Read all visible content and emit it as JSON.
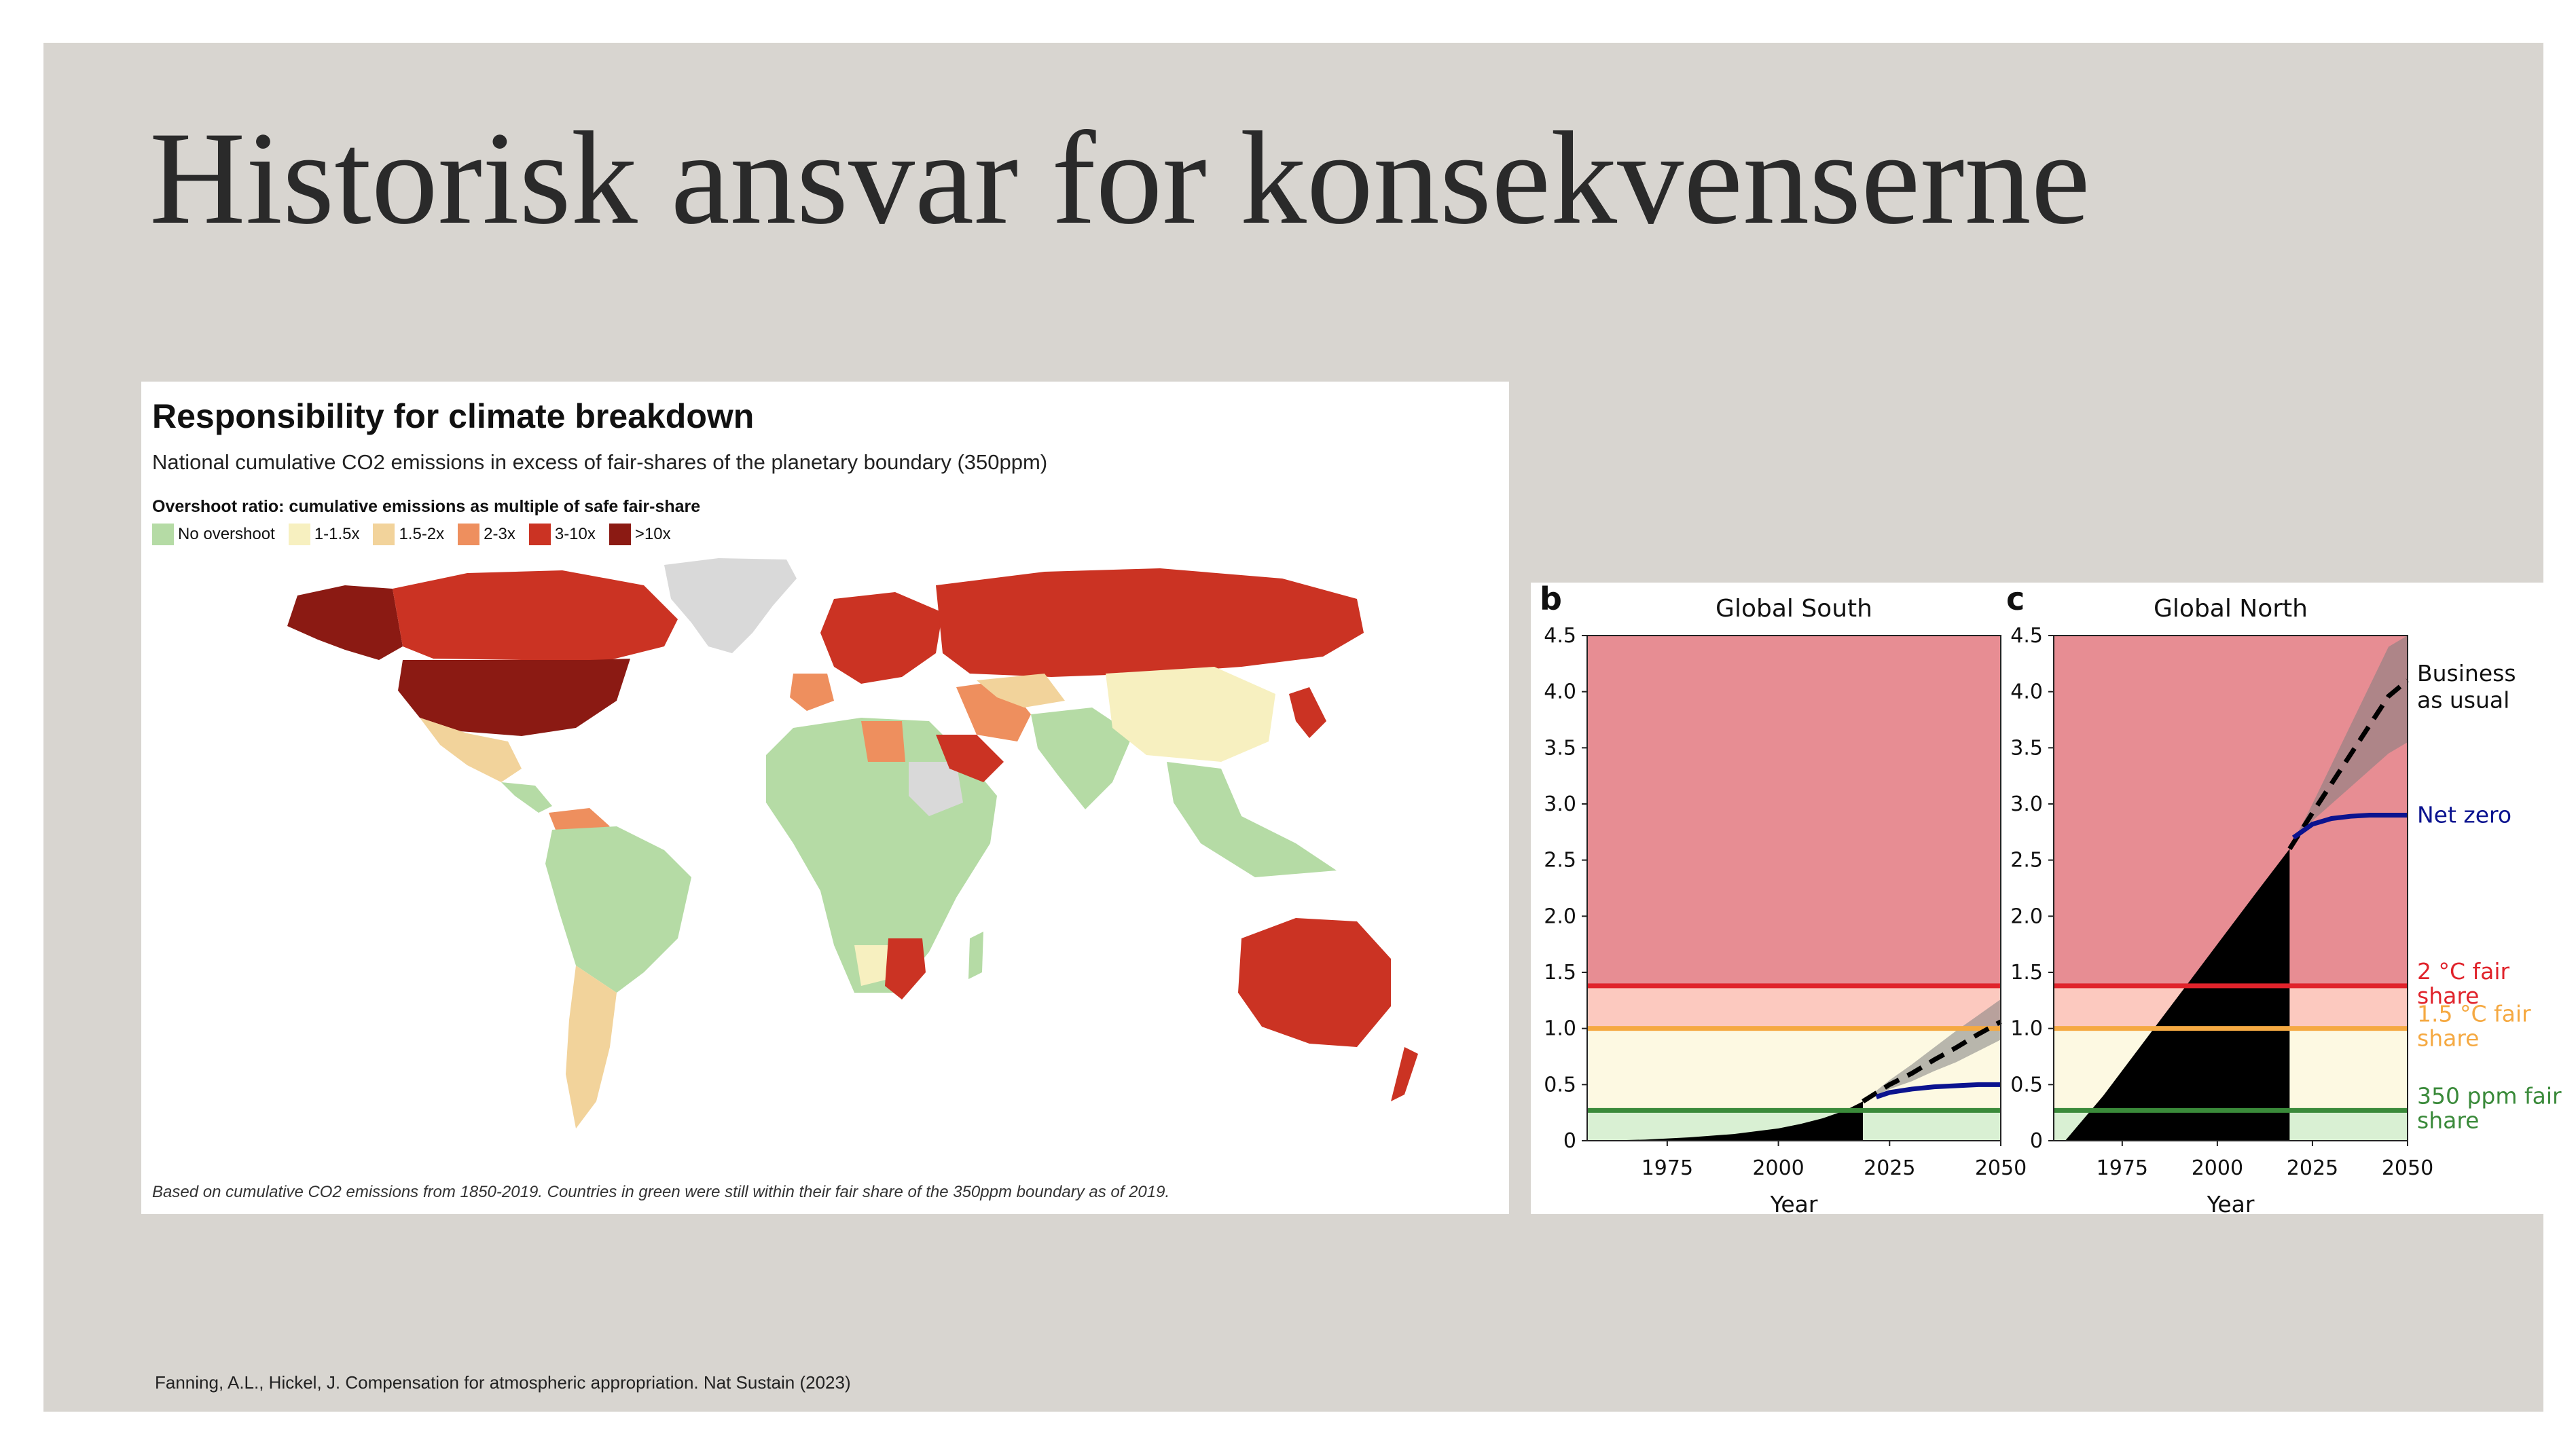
{
  "slide": {
    "title": "Historisk ansvar for konsekvenserne",
    "citation": "Fanning, A.L., Hickel, J. Compensation for atmospheric appropriation. Nat Sustain (2023)"
  },
  "map": {
    "title": "Responsibility for climate breakdown",
    "subtitle": "National cumulative CO2 emissions in excess of fair-shares of the planetary boundary (350ppm)",
    "legend_title": "Overshoot ratio: cumulative emissions as multiple of safe fair-share",
    "legend": [
      {
        "label": "No overshoot",
        "color": "#b5dba5"
      },
      {
        "label": "1-1.5x",
        "color": "#f7f0c0"
      },
      {
        "label": "1.5-2x",
        "color": "#f2d39b"
      },
      {
        "label": "2-3x",
        "color": "#ee8f5e"
      },
      {
        "label": "3-10x",
        "color": "#cb3323"
      },
      {
        "label": ">10x",
        "color": "#8b1a13"
      }
    ],
    "no_data_color": "#d9d9d9",
    "footnote": "Based on cumulative CO2 emissions from 1850-2019. Countries in green were still within their fair share of the 350ppm boundary as of 2019."
  },
  "chart_data": [
    {
      "type": "area",
      "panel_letter": "b",
      "title": "Global South",
      "xlabel": "Year",
      "ylabel": "",
      "xlim": [
        1957,
        2050
      ],
      "ylim": [
        0,
        4.5
      ],
      "xticks": [
        1975,
        2000,
        2025,
        2050
      ],
      "yticks": [
        0,
        0.5,
        1.0,
        1.5,
        2.0,
        2.5,
        3.0,
        3.5,
        4.0,
        4.5
      ],
      "ytick_labels": [
        "0",
        "0.5",
        "1.0",
        "1.5",
        "2.0",
        "2.5",
        "3.0",
        "3.5",
        "4.0",
        "4.5"
      ],
      "thresholds": [
        {
          "value": 1.38,
          "color": "#e0232b"
        },
        {
          "value": 1.0,
          "color": "#f5a942"
        },
        {
          "value": 0.27,
          "color": "#3a8a3a"
        }
      ],
      "series": [
        {
          "role": "historical",
          "color": "#000000",
          "x": [
            1960,
            1970,
            1980,
            1990,
            2000,
            2005,
            2010,
            2015,
            2019
          ],
          "y": [
            0,
            0.01,
            0.03,
            0.06,
            0.11,
            0.15,
            0.2,
            0.27,
            0.35
          ]
        },
        {
          "role": "business-as-usual",
          "color": "#000000",
          "x": [
            2019,
            2025,
            2030,
            2035,
            2040,
            2045,
            2050
          ],
          "y": [
            0.35,
            0.5,
            0.6,
            0.72,
            0.83,
            0.95,
            1.06
          ],
          "band_low": [
            0.35,
            0.46,
            0.53,
            0.62,
            0.7,
            0.8,
            0.9
          ],
          "band_high": [
            0.35,
            0.54,
            0.68,
            0.83,
            0.98,
            1.12,
            1.26
          ]
        },
        {
          "role": "net-zero",
          "color": "#0b138f",
          "x": [
            2022,
            2025,
            2030,
            2035,
            2040,
            2045,
            2050
          ],
          "y": [
            0.39,
            0.43,
            0.46,
            0.48,
            0.49,
            0.5,
            0.5
          ]
        }
      ]
    },
    {
      "type": "area",
      "panel_letter": "c",
      "title": "Global North",
      "xlabel": "Year",
      "ylabel": "",
      "xlim": [
        1957,
        2050
      ],
      "ylim": [
        0,
        4.5
      ],
      "xticks": [
        1975,
        2000,
        2025,
        2050
      ],
      "yticks": [
        0,
        0.5,
        1.0,
        1.5,
        2.0,
        2.5,
        3.0,
        3.5,
        4.0,
        4.5
      ],
      "ytick_labels": [
        "0",
        "0.5",
        "1.0",
        "1.5",
        "2.0",
        "2.5",
        "3.0",
        "3.5",
        "4.0",
        "4.5"
      ],
      "thresholds": [
        {
          "value": 1.38,
          "color": "#e0232b",
          "label": "2 °C fair share"
        },
        {
          "value": 1.0,
          "color": "#f5a942",
          "label": "1.5 °C fair share"
        },
        {
          "value": 0.27,
          "color": "#3a8a3a",
          "label": "350 ppm fair share"
        }
      ],
      "series": [
        {
          "role": "historical",
          "color": "#000000",
          "x": [
            1960,
            1970,
            1980,
            1990,
            2000,
            2010,
            2019
          ],
          "y": [
            0,
            0.4,
            0.85,
            1.3,
            1.75,
            2.2,
            2.6
          ]
        },
        {
          "role": "business-as-usual",
          "name": "Business as usual",
          "color": "#000000",
          "x": [
            2019,
            2025,
            2030,
            2035,
            2040,
            2045,
            2050
          ],
          "y": [
            2.6,
            2.92,
            3.18,
            3.44,
            3.7,
            3.96,
            4.1
          ],
          "band_low": [
            2.6,
            2.85,
            3.0,
            3.15,
            3.3,
            3.45,
            3.55
          ],
          "band_high": [
            2.6,
            3.0,
            3.35,
            3.7,
            4.05,
            4.4,
            4.5
          ]
        },
        {
          "role": "net-zero",
          "name": "Net zero",
          "color": "#0b138f",
          "x": [
            2020,
            2025,
            2030,
            2035,
            2040,
            2045,
            2050
          ],
          "y": [
            2.7,
            2.82,
            2.87,
            2.89,
            2.9,
            2.9,
            2.9
          ]
        }
      ]
    }
  ]
}
